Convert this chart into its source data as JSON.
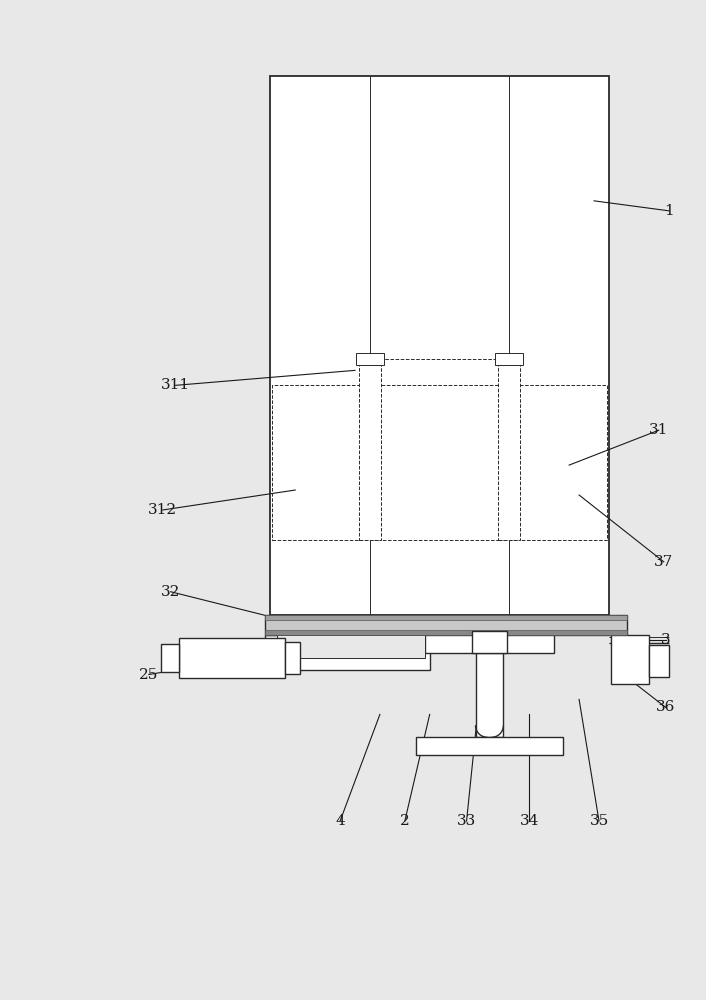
{
  "bg_color": "#e8e8e8",
  "line_color": "#2a2a2a",
  "fig_width": 7.06,
  "fig_height": 10.0,
  "font_size": 11,
  "lw_main": 1.3,
  "lw_med": 1.0,
  "lw_thin": 0.7
}
